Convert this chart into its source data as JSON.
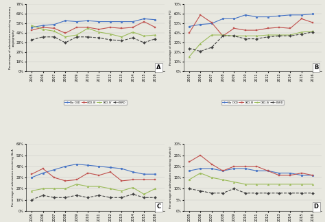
{
  "years": [
    2005,
    2006,
    2007,
    2008,
    2009,
    2010,
    2011,
    2012,
    2013,
    2014,
    2015,
    2016
  ],
  "panel_A": {
    "title": "A",
    "ylabel": "Percentage of admissions receiving coronary angiography",
    "ylim": [
      0,
      70
    ],
    "yticks": [
      0,
      10,
      20,
      30,
      40,
      50,
      60,
      70
    ],
    "NoCKD": [
      46,
      48,
      49,
      53,
      52,
      53,
      52,
      52,
      52,
      52,
      55,
      54
    ],
    "CKD_III": [
      43,
      46,
      45,
      40,
      46,
      46,
      44,
      46,
      45,
      46,
      52,
      46
    ],
    "CKD_IV": [
      48,
      44,
      42,
      36,
      38,
      45,
      41,
      39,
      36,
      41,
      37,
      38
    ],
    "ESRD": [
      33,
      36,
      36,
      30,
      36,
      36,
      35,
      33,
      32,
      35,
      30,
      34
    ]
  },
  "panel_B": {
    "title": "B",
    "ylabel": "Percentage of admissions receiving PCI",
    "ylim": [
      0,
      70
    ],
    "yticks": [
      0,
      10,
      20,
      30,
      40,
      50,
      60,
      70
    ],
    "NoCKD": [
      47,
      49,
      50,
      55,
      55,
      59,
      57,
      57,
      58,
      59,
      59,
      60
    ],
    "CKD_III": [
      40,
      59,
      51,
      37,
      45,
      43,
      43,
      45,
      46,
      45,
      55,
      51
    ],
    "CKD_IV": [
      15,
      29,
      38,
      38,
      37,
      37,
      37,
      38,
      38,
      38,
      41,
      42
    ],
    "ESRD": [
      24,
      21,
      25,
      37,
      37,
      34,
      34,
      36,
      37,
      37,
      39,
      41
    ]
  },
  "panel_C": {
    "title": "C",
    "ylabel": "Percentage of admissions receiving Hb A",
    "ylim": [
      0,
      60
    ],
    "yticks": [
      0,
      10,
      20,
      30,
      40,
      50,
      60
    ],
    "NoCKD": [
      30,
      34,
      37,
      40,
      42,
      41,
      40,
      39,
      38,
      35,
      33,
      33
    ],
    "CKD_III": [
      33,
      38,
      30,
      27,
      28,
      34,
      32,
      35,
      27,
      28,
      28,
      28
    ],
    "CKD_IV": [
      18,
      20,
      20,
      20,
      24,
      22,
      22,
      20,
      18,
      21,
      15,
      20
    ],
    "ESRD": [
      10,
      14,
      12,
      12,
      14,
      12,
      14,
      12,
      12,
      15,
      12,
      12
    ]
  },
  "panel_D": {
    "title": "D",
    "ylabel": "Percentage of admissions receiving (metric)",
    "ylim": [
      0,
      30
    ],
    "yticks": [
      0,
      5,
      10,
      15,
      20,
      25,
      30
    ],
    "NoCKD": [
      18,
      19,
      19,
      18,
      19,
      19,
      18,
      18,
      17,
      17,
      16,
      16
    ],
    "CKD_III": [
      22,
      25,
      21,
      18,
      20,
      20,
      20,
      18,
      16,
      16,
      17,
      16
    ],
    "CKD_IV": [
      14,
      17,
      15,
      14,
      13,
      12,
      12,
      12,
      12,
      12,
      12,
      12
    ],
    "ESRD": [
      10,
      9,
      8,
      8,
      10,
      8,
      8,
      8,
      8,
      8,
      8,
      8
    ]
  },
  "colors": {
    "NoCKD": "#4472c4",
    "CKD_III": "#c0504d",
    "CKD_IV": "#9bbb59",
    "ESRD": "#404040"
  },
  "legend_labels": [
    "No CKD",
    "CKD-III",
    "CKD-IV",
    "ESRD"
  ],
  "background": "#e8e8e0"
}
